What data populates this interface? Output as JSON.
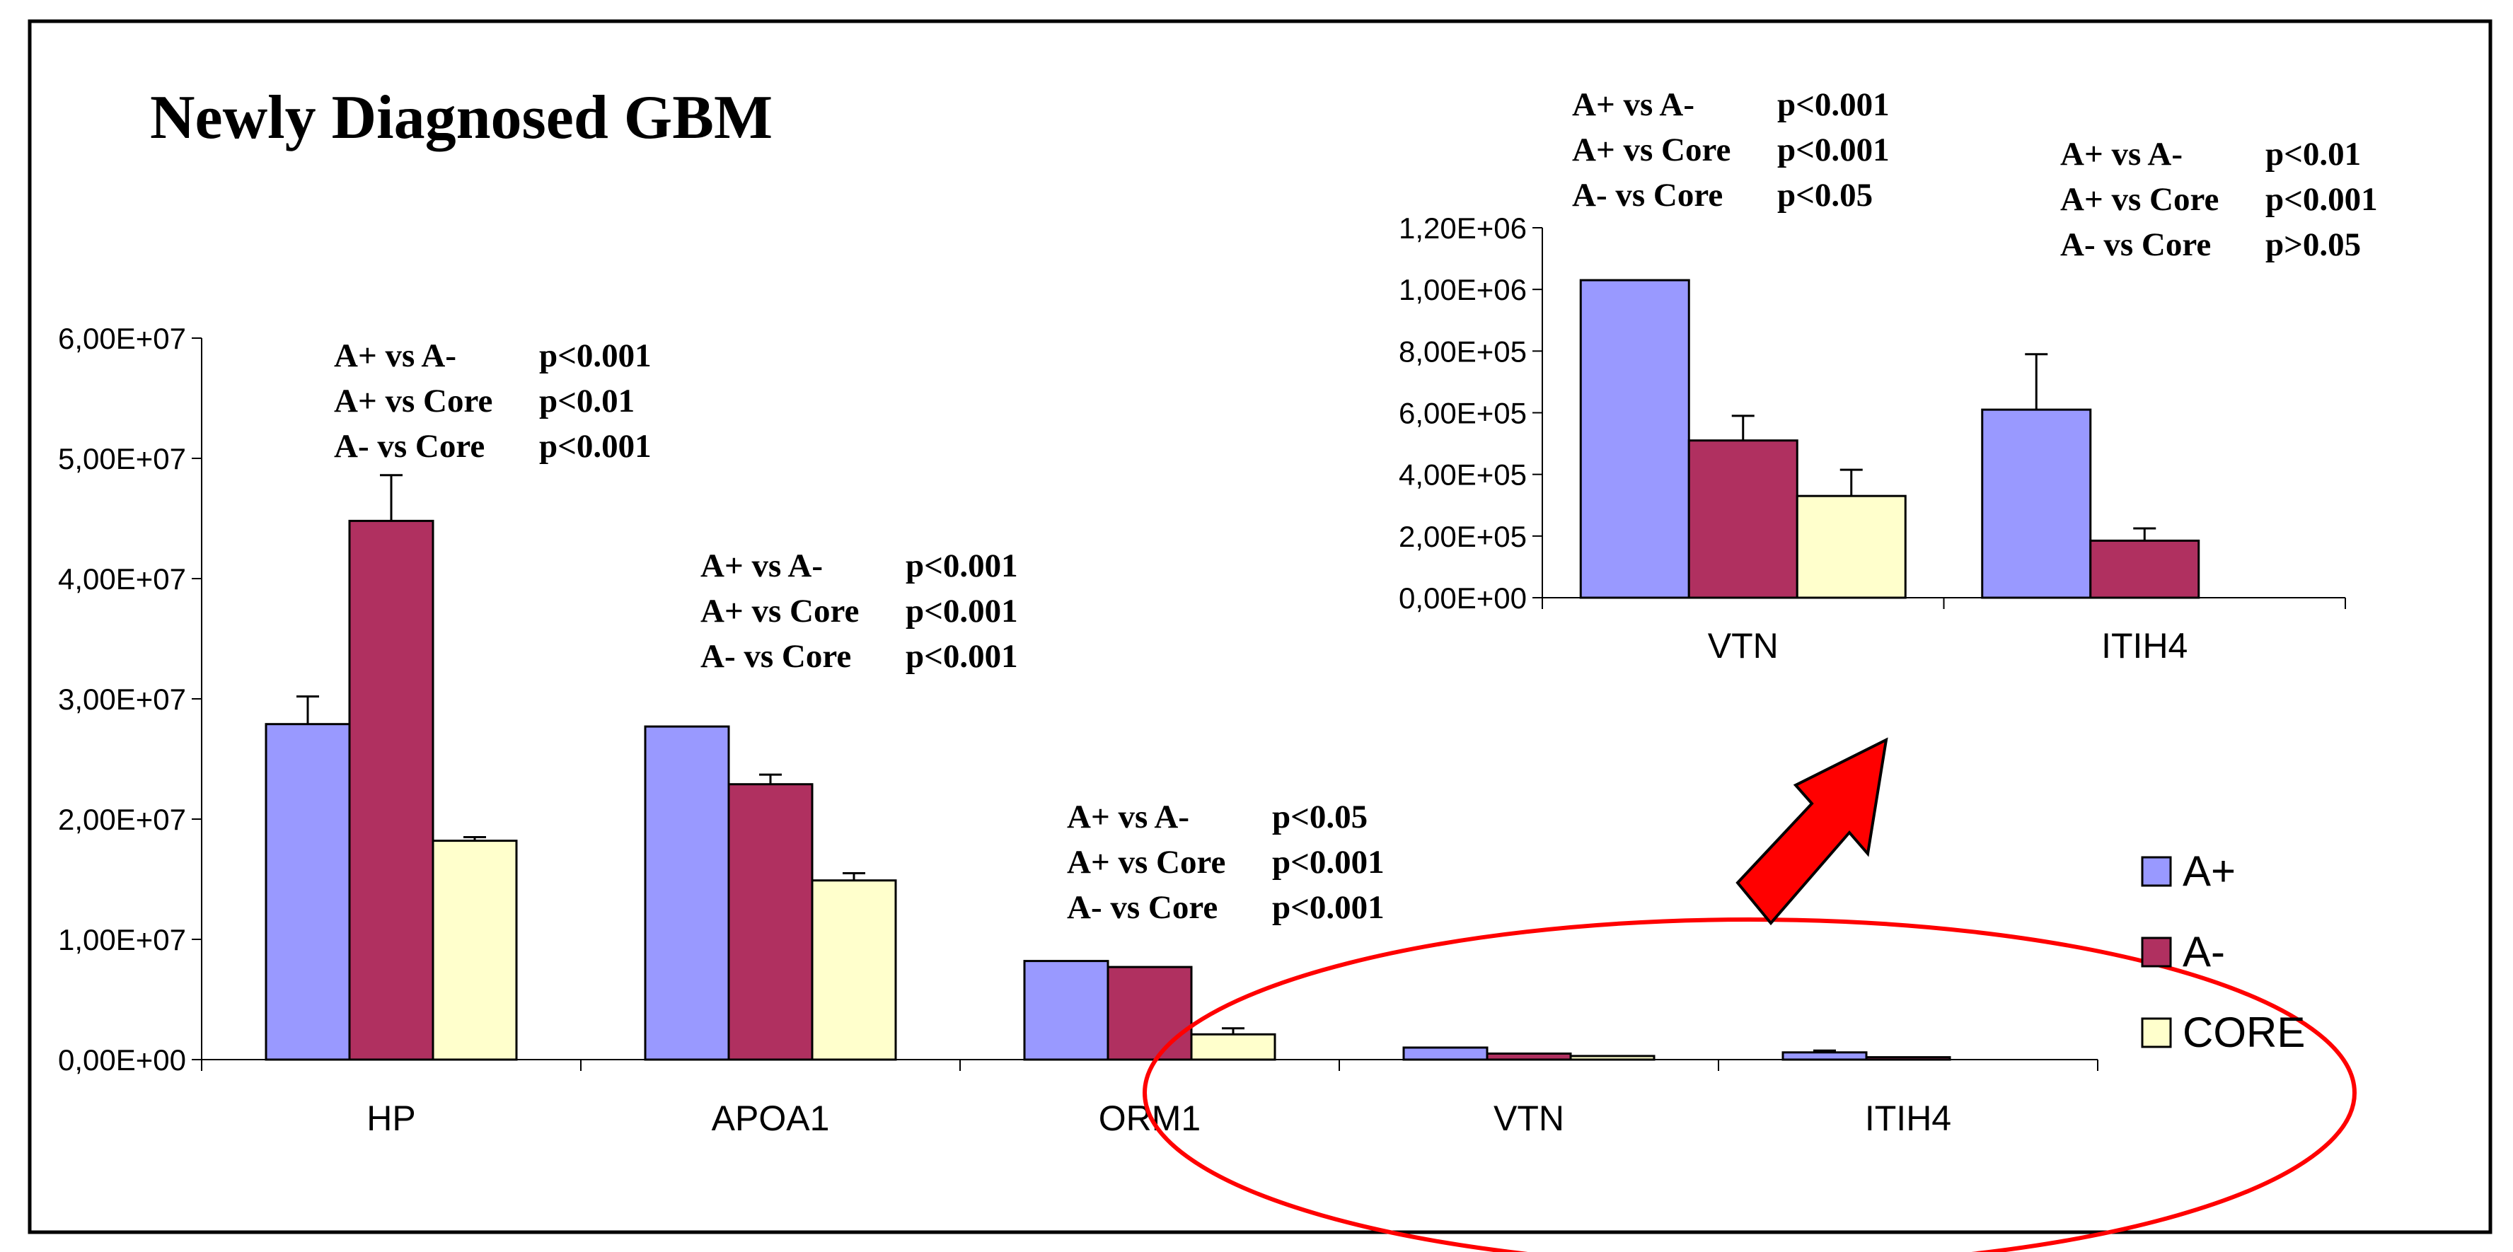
{
  "colors": {
    "A+": "#9999ff",
    "A-": "#b03060",
    "CORE": "#ffffcc",
    "highlight": "#ff0000",
    "arrow": "#ff0000"
  },
  "title": "Newly Diagnosed GBM",
  "legend": {
    "position": "right",
    "items": [
      "A+",
      "A-",
      "CORE"
    ]
  },
  "chart_data": [
    {
      "type": "bar",
      "title": "Newly Diagnosed GBM",
      "xlabel": "",
      "ylabel": "",
      "ylim": [
        0,
        60000000
      ],
      "yticks": [
        "0,00E+00",
        "1,00E+07",
        "2,00E+07",
        "3,00E+07",
        "4,00E+07",
        "5,00E+07",
        "6,00E+07"
      ],
      "categories": [
        "HP",
        "APOA1",
        "ORM1",
        "VTN",
        "ITIH4"
      ],
      "series": [
        {
          "name": "A+",
          "values": [
            27900000,
            27700000,
            8200000,
            1000000,
            600000
          ],
          "errors": [
            2300000,
            0,
            0,
            0,
            150000
          ]
        },
        {
          "name": "A-",
          "values": [
            44800000,
            22900000,
            7700000,
            500000,
            200000
          ],
          "errors": [
            3800000,
            800000,
            0,
            0,
            0
          ]
        },
        {
          "name": "CORE",
          "values": [
            18200000,
            14900000,
            2100000,
            300000,
            null
          ],
          "errors": [
            300000,
            600000,
            500000,
            0,
            0
          ]
        }
      ],
      "annotations": [
        {
          "category": "HP",
          "lines": [
            [
              "A+ vs A-",
              "p<0.001"
            ],
            [
              "A+ vs Core",
              "p<0.01"
            ],
            [
              "A- vs Core",
              "p<0.001"
            ]
          ]
        },
        {
          "category": "APOA1",
          "lines": [
            [
              "A+ vs A-",
              "p<0.001"
            ],
            [
              "A+ vs Core",
              "p<0.001"
            ],
            [
              "A- vs Core",
              "p<0.001"
            ]
          ]
        },
        {
          "category": "ORM1",
          "lines": [
            [
              "A+ vs A-",
              "p<0.05"
            ],
            [
              "A+ vs Core",
              "p<0.001"
            ],
            [
              "A- vs Core",
              "p<0.001"
            ]
          ]
        }
      ],
      "grid": false
    },
    {
      "type": "bar",
      "title": "",
      "xlabel": "",
      "ylabel": "",
      "ylim": [
        0,
        1200000
      ],
      "yticks": [
        "0,00E+00",
        "2,00E+05",
        "4,00E+05",
        "6,00E+05",
        "8,00E+05",
        "1,00E+06",
        "1,20E+06"
      ],
      "categories": [
        "VTN",
        "ITIH4"
      ],
      "series": [
        {
          "name": "A+",
          "values": [
            1030000,
            610000
          ],
          "errors": [
            0,
            180000
          ]
        },
        {
          "name": "A-",
          "values": [
            510000,
            185000
          ],
          "errors": [
            80000,
            40000
          ]
        },
        {
          "name": "CORE",
          "values": [
            330000,
            null
          ],
          "errors": [
            85000,
            0
          ]
        }
      ],
      "annotations": [
        {
          "category": "VTN",
          "lines": [
            [
              "A+ vs A-",
              "p<0.001"
            ],
            [
              "A+ vs Core",
              "p<0.001"
            ],
            [
              "A- vs Core",
              "p<0.05"
            ]
          ]
        },
        {
          "category": "ITIH4",
          "lines": [
            [
              "A+ vs A-",
              "p<0.01"
            ],
            [
              "A+ vs Core",
              "p<0.001"
            ],
            [
              "A- vs Core",
              "p>0.05"
            ]
          ]
        }
      ],
      "grid": false
    }
  ]
}
